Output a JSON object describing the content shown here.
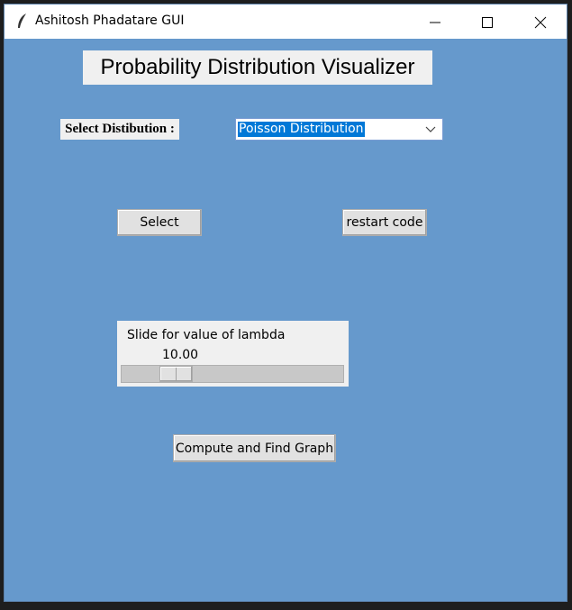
{
  "window": {
    "title": "Ashitosh Phadatare GUI"
  },
  "header": {
    "title": "Probability Distribution Visualizer"
  },
  "form": {
    "distribution_label": "Select Distibution :",
    "distribution_value": "Poisson Distribution",
    "select_button": "Select",
    "restart_button": "restart code",
    "slider_label": "Slide for value of lambda",
    "slider_value": "10.00",
    "compute_button": "Compute and Find Graph"
  }
}
